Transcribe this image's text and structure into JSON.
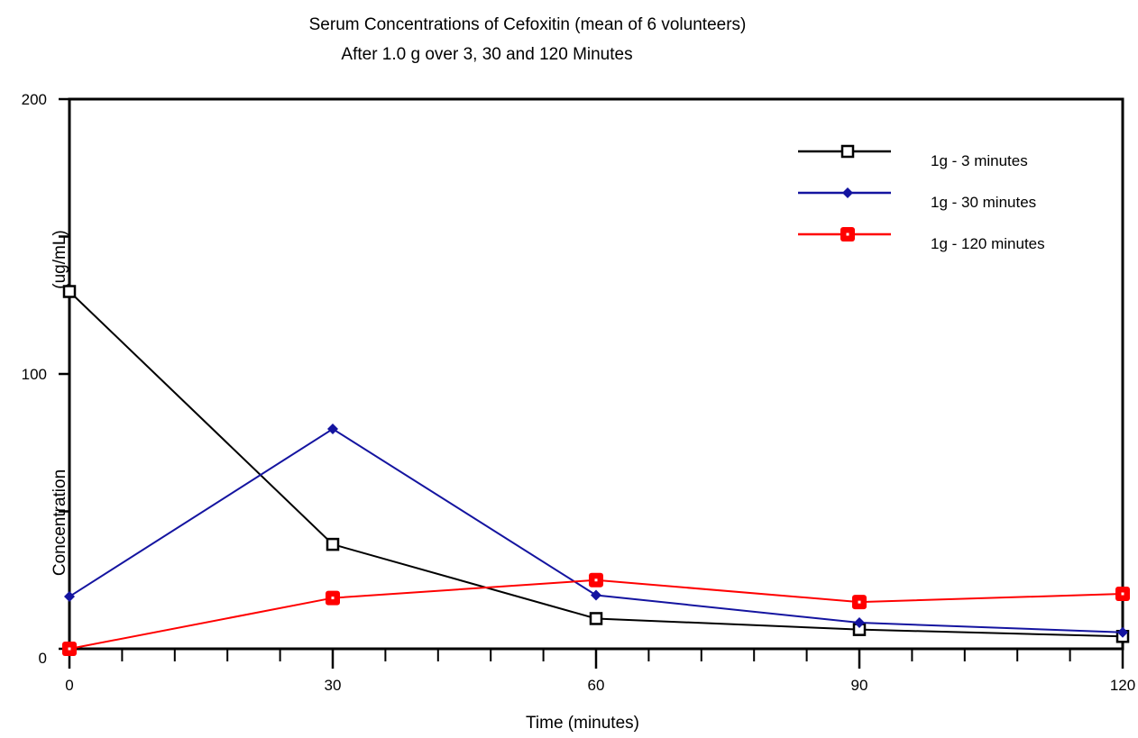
{
  "chart_data": {
    "type": "line",
    "title": "Serum Concentrations of Cefoxitin (mean of 6 volunteers)",
    "subtitle": "After 1.0 g over 3, 30 and 120 Minutes",
    "xlabel": "Time (minutes)",
    "ylabel": "Concentration",
    "ylabel_unit": "(ug/mL)",
    "x": [
      0,
      30,
      60,
      90,
      120
    ],
    "x_ticks": [
      "0",
      "30",
      "60",
      "90",
      "120"
    ],
    "y_ticks": [
      "0",
      "100",
      "200"
    ],
    "xlim": [
      0,
      120
    ],
    "ylim": [
      0,
      200
    ],
    "legend_position": "top-right",
    "grid": false,
    "series": [
      {
        "name": "1g - 3 minutes",
        "color": "#000000",
        "marker": "open-square",
        "values": [
          130,
          38,
          11,
          7,
          4.5
        ]
      },
      {
        "name": "1g - 30 minutes",
        "color": "#1414a0",
        "marker": "diamond",
        "values": [
          19,
          80,
          19.5,
          9.5,
          6
        ]
      },
      {
        "name": "1g - 120 minutes",
        "color": "#ff0000",
        "marker": "filled-square",
        "values": [
          0,
          18.5,
          25,
          17,
          20
        ]
      }
    ]
  }
}
